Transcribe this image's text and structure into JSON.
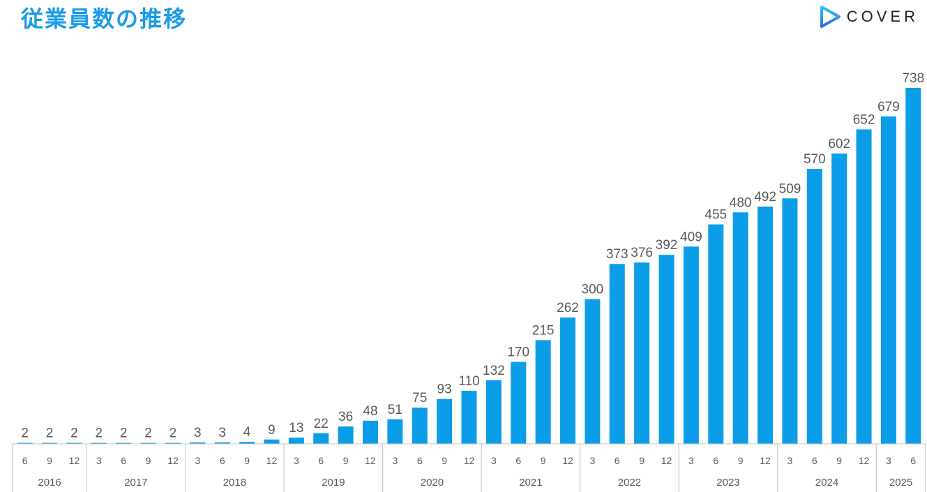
{
  "header": {
    "title": "従業員数の推移",
    "logo_text": "COVER"
  },
  "colors": {
    "bar": "#0b9de8",
    "title": "#1a9be6",
    "label": "#595959",
    "axis": "#bfbfbf",
    "logo_top": "#33c3f0",
    "logo_bottom": "#2a6fe0"
  },
  "chart_data": {
    "type": "bar",
    "title": "",
    "xlabel": "",
    "ylabel": "",
    "ylim": [
      0,
      738
    ],
    "grid": false,
    "categories": [
      "6",
      "9",
      "12",
      "3",
      "6",
      "9",
      "12",
      "3",
      "6",
      "9",
      "12",
      "3",
      "6",
      "9",
      "12",
      "3",
      "6",
      "9",
      "12",
      "3",
      "6",
      "9",
      "12",
      "3",
      "6",
      "9",
      "12",
      "3",
      "6",
      "9",
      "12",
      "3",
      "6",
      "9",
      "12",
      "3",
      "6"
    ],
    "values": [
      2,
      2,
      2,
      2,
      2,
      2,
      2,
      3,
      3,
      4,
      9,
      13,
      22,
      36,
      48,
      51,
      75,
      93,
      110,
      132,
      170,
      215,
      262,
      300,
      373,
      376,
      392,
      409,
      455,
      480,
      492,
      509,
      570,
      602,
      652,
      679,
      738
    ],
    "year_groups": [
      {
        "year": "2016",
        "count": 3
      },
      {
        "year": "2017",
        "count": 4
      },
      {
        "year": "2018",
        "count": 4
      },
      {
        "year": "2019",
        "count": 4
      },
      {
        "year": "2020",
        "count": 4
      },
      {
        "year": "2021",
        "count": 4
      },
      {
        "year": "2022",
        "count": 4
      },
      {
        "year": "2023",
        "count": 4
      },
      {
        "year": "2024",
        "count": 4
      },
      {
        "year": "2025",
        "count": 2
      }
    ]
  }
}
